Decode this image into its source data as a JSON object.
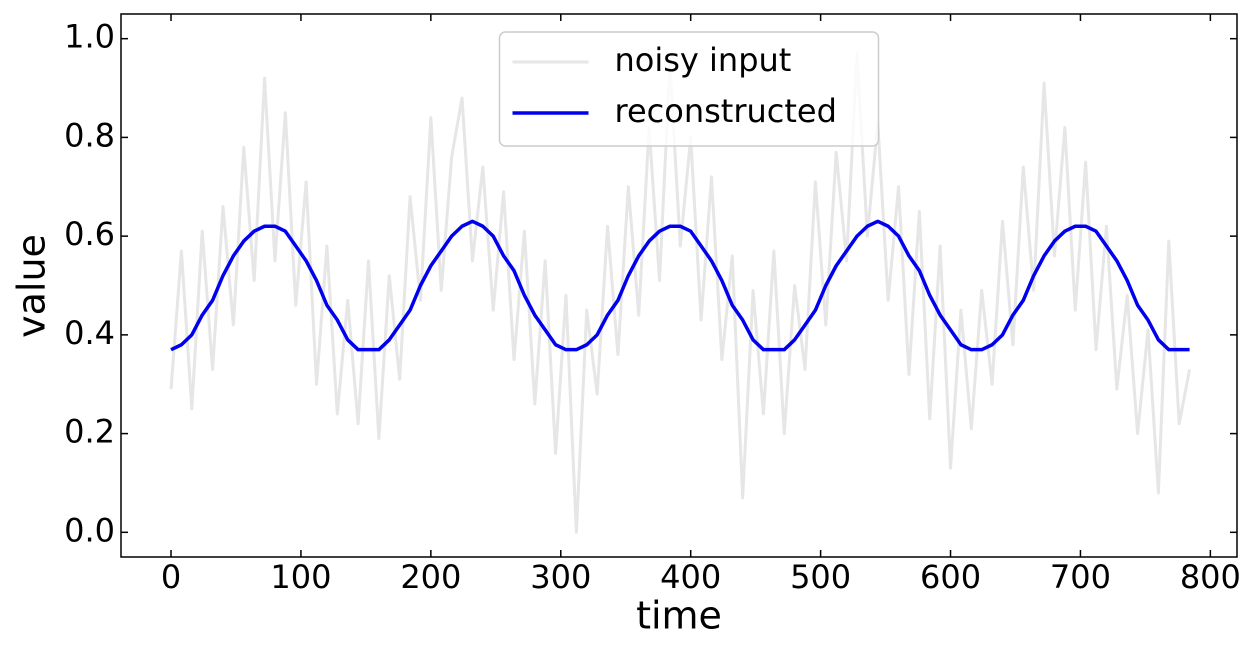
{
  "chart_data": {
    "type": "line",
    "xlabel": "time",
    "ylabel": "value",
    "x": [
      0,
      8,
      16,
      24,
      32,
      40,
      48,
      56,
      64,
      72,
      80,
      88,
      96,
      104,
      112,
      120,
      128,
      136,
      144,
      152,
      160,
      168,
      176,
      184,
      192,
      200,
      208,
      216,
      224,
      232,
      240,
      248,
      256,
      264,
      272,
      280,
      288,
      296,
      304,
      312,
      320,
      328,
      336,
      344,
      352,
      360,
      368,
      376,
      384,
      392,
      400,
      408,
      416,
      424,
      432,
      440,
      448,
      456,
      464,
      472,
      480,
      488,
      496,
      504,
      512,
      520,
      528,
      536,
      544,
      552,
      560,
      568,
      576,
      584,
      592,
      600,
      608,
      616,
      624,
      632,
      640,
      648,
      656,
      664,
      672,
      680,
      688,
      696,
      704,
      712,
      720,
      728,
      736,
      744,
      752,
      760,
      768,
      776,
      784
    ],
    "series": [
      {
        "name": "noisy input",
        "color": "#e6e6e6",
        "width": 3,
        "values": [
          0.29,
          0.57,
          0.25,
          0.61,
          0.33,
          0.66,
          0.42,
          0.78,
          0.51,
          0.92,
          0.55,
          0.85,
          0.46,
          0.71,
          0.3,
          0.58,
          0.24,
          0.47,
          0.22,
          0.55,
          0.19,
          0.52,
          0.31,
          0.68,
          0.47,
          0.84,
          0.49,
          0.76,
          0.88,
          0.55,
          0.74,
          0.45,
          0.69,
          0.35,
          0.61,
          0.26,
          0.55,
          0.16,
          0.48,
          0.0,
          0.45,
          0.28,
          0.62,
          0.36,
          0.7,
          0.44,
          0.82,
          0.51,
          0.95,
          0.58,
          0.8,
          0.43,
          0.72,
          0.35,
          0.56,
          0.07,
          0.49,
          0.24,
          0.57,
          0.2,
          0.5,
          0.33,
          0.71,
          0.42,
          0.77,
          0.55,
          0.97,
          0.6,
          0.83,
          0.47,
          0.7,
          0.32,
          0.65,
          0.23,
          0.58,
          0.13,
          0.45,
          0.21,
          0.49,
          0.3,
          0.63,
          0.38,
          0.74,
          0.49,
          0.91,
          0.56,
          0.82,
          0.45,
          0.75,
          0.37,
          0.62,
          0.29,
          0.48,
          0.2,
          0.41,
          0.08,
          0.59,
          0.22,
          0.33
        ]
      },
      {
        "name": "reconstructed",
        "color": "#0000ee",
        "width": 3.5,
        "values": [
          0.37,
          0.38,
          0.4,
          0.44,
          0.47,
          0.52,
          0.56,
          0.59,
          0.61,
          0.62,
          0.62,
          0.61,
          0.58,
          0.55,
          0.51,
          0.46,
          0.43,
          0.39,
          0.37,
          0.37,
          0.37,
          0.39,
          0.42,
          0.45,
          0.5,
          0.54,
          0.57,
          0.6,
          0.62,
          0.63,
          0.62,
          0.6,
          0.56,
          0.53,
          0.48,
          0.44,
          0.41,
          0.38,
          0.37,
          0.37,
          0.38,
          0.4,
          0.44,
          0.47,
          0.52,
          0.56,
          0.59,
          0.61,
          0.62,
          0.62,
          0.61,
          0.58,
          0.55,
          0.51,
          0.46,
          0.43,
          0.39,
          0.37,
          0.37,
          0.37,
          0.39,
          0.42,
          0.45,
          0.5,
          0.54,
          0.57,
          0.6,
          0.62,
          0.63,
          0.62,
          0.6,
          0.56,
          0.53,
          0.48,
          0.44,
          0.41,
          0.38,
          0.37,
          0.37,
          0.38,
          0.4,
          0.44,
          0.47,
          0.52,
          0.56,
          0.59,
          0.61,
          0.62,
          0.62,
          0.61,
          0.58,
          0.55,
          0.51,
          0.46,
          0.43,
          0.39,
          0.37,
          0.37,
          0.37
        ]
      }
    ],
    "xlim": [
      -38.5,
      820.5
    ],
    "xticks": [
      0,
      100,
      200,
      300,
      400,
      500,
      600,
      700,
      800
    ],
    "ylim": [
      -0.05,
      1.05
    ],
    "yticks": [
      {
        "value": 0,
        "label": "0.0"
      },
      0.2,
      0.4,
      0.6,
      0.8,
      {
        "value": 1,
        "label": "1.0"
      }
    ],
    "legend": "upper center",
    "grid": false
  }
}
